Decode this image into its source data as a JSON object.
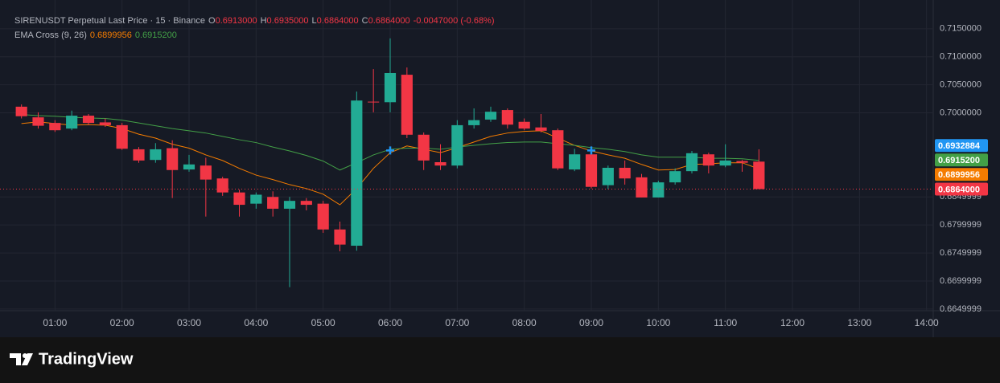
{
  "chart_data": {
    "type": "candlestick",
    "title": "SIRENUSDT Perpetual Last Price · 15 · Binance",
    "last_prefixes": [
      "O",
      "H",
      "L",
      "C"
    ],
    "last_labels": [
      "0.6913000",
      "0.6935000",
      "0.6864000",
      "0.6864000"
    ],
    "change_label": "-0.0047000 (-0.68%)",
    "indicator_title": "EMA Cross (9, 26)",
    "up_color": "#22ab94",
    "down_color": "#f23645",
    "x": [
      0.5,
      0.75,
      1,
      1.25,
      1.5,
      1.75,
      2,
      2.25,
      2.5,
      2.75,
      3,
      3.25,
      3.5,
      3.75,
      4,
      4.25,
      4.5,
      4.75,
      5,
      5.25,
      5.5,
      5.75,
      6,
      6.25,
      6.5,
      6.75,
      7,
      7.25,
      7.5,
      7.75,
      8,
      8.25,
      8.5,
      8.75,
      9,
      9.25,
      9.5,
      9.75,
      10,
      10.25,
      10.5,
      10.75,
      11,
      11.25,
      11.5
    ],
    "open": [
      0.7011,
      0.6992,
      0.6982,
      0.6972,
      0.6995,
      0.6983,
      0.6978,
      0.6935,
      0.6916,
      0.6937,
      0.6899,
      0.6906,
      0.6883,
      0.6858,
      0.6838,
      0.685,
      0.6829,
      0.6843,
      0.6838,
      0.6792,
      0.6763,
      0.702,
      0.7019,
      0.7068,
      0.6961,
      0.6912,
      0.6906,
      0.6978,
      0.6988,
      0.7005,
      0.6984,
      0.6974,
      0.6969,
      0.6899,
      0.6926,
      0.6871,
      0.6902,
      0.6885,
      0.6849,
      0.6876,
      0.6896,
      0.6926,
      0.6906,
      0.6914,
      0.6913
    ],
    "high": [
      0.7015,
      0.7001,
      0.6987,
      0.7004,
      0.6998,
      0.699,
      0.6982,
      0.6939,
      0.6946,
      0.6951,
      0.6925,
      0.692,
      0.6886,
      0.6863,
      0.6858,
      0.686,
      0.685,
      0.6848,
      0.6843,
      0.6806,
      0.7038,
      0.7078,
      0.7133,
      0.7081,
      0.6965,
      0.6944,
      0.6987,
      0.7008,
      0.7011,
      0.7008,
      0.699,
      0.6998,
      0.6972,
      0.6936,
      0.6936,
      0.6906,
      0.6915,
      0.6891,
      0.6879,
      0.6901,
      0.6932,
      0.6929,
      0.6944,
      0.6916,
      0.6935
    ],
    "low": [
      0.699,
      0.6972,
      0.6966,
      0.6969,
      0.6978,
      0.6975,
      0.6934,
      0.6911,
      0.6911,
      0.6848,
      0.6895,
      0.6815,
      0.6852,
      0.6815,
      0.6829,
      0.6815,
      0.6689,
      0.6826,
      0.6786,
      0.6753,
      0.6754,
      0.7001,
      0.7001,
      0.6955,
      0.6898,
      0.6898,
      0.6901,
      0.6972,
      0.6984,
      0.6972,
      0.6969,
      0.6965,
      0.6898,
      0.6896,
      0.6865,
      0.6864,
      0.6872,
      0.6849,
      0.6849,
      0.6872,
      0.6892,
      0.6892,
      0.6903,
      0.6895,
      0.6864
    ],
    "close": [
      0.6994,
      0.6977,
      0.6969,
      0.6995,
      0.6982,
      0.6978,
      0.6936,
      0.6915,
      0.6935,
      0.6898,
      0.6908,
      0.6881,
      0.6858,
      0.6836,
      0.6854,
      0.6829,
      0.6843,
      0.6836,
      0.6792,
      0.6765,
      0.7022,
      0.7019,
      0.7071,
      0.6961,
      0.6915,
      0.6906,
      0.6978,
      0.6987,
      0.7002,
      0.6979,
      0.6972,
      0.6968,
      0.6901,
      0.6926,
      0.6868,
      0.6902,
      0.6883,
      0.6849,
      0.6876,
      0.6896,
      0.6928,
      0.6906,
      0.6915,
      0.6911,
      0.6864
    ],
    "ema_lines": [
      {
        "color": "#f57c00",
        "value_label": "0.6899956",
        "values": [
          0.6981,
          0.6984,
          0.6981,
          0.6978,
          0.6979,
          0.6978,
          0.6972,
          0.6962,
          0.6955,
          0.6944,
          0.6937,
          0.6925,
          0.6915,
          0.6901,
          0.6889,
          0.6881,
          0.6872,
          0.6865,
          0.6855,
          0.6836,
          0.6865,
          0.6901,
          0.6929,
          0.6941,
          0.6935,
          0.6929,
          0.6938,
          0.6948,
          0.6958,
          0.6964,
          0.6967,
          0.6968,
          0.6955,
          0.6942,
          0.6932,
          0.6925,
          0.6919,
          0.6908,
          0.6898,
          0.6899,
          0.6908,
          0.6909,
          0.6911,
          0.6911,
          0.6899956
        ]
      },
      {
        "color": "#43a047",
        "value_label": "0.6915200",
        "values": [
          0.6997,
          0.6995,
          0.6994,
          0.6992,
          0.6991,
          0.699,
          0.6987,
          0.6982,
          0.6977,
          0.6972,
          0.6968,
          0.6964,
          0.6958,
          0.6952,
          0.6947,
          0.6939,
          0.6932,
          0.6924,
          0.6914,
          0.6898,
          0.6911,
          0.6925,
          0.6935,
          0.6937,
          0.6937,
          0.6935,
          0.6939,
          0.6942,
          0.6945,
          0.6947,
          0.6948,
          0.6948,
          0.6945,
          0.6942,
          0.6938,
          0.6935,
          0.6931,
          0.6925,
          0.6921,
          0.6921,
          0.6921,
          0.6919,
          0.6919,
          0.6918,
          0.69152
        ]
      }
    ],
    "marker_price": 0.6932884,
    "marker_x": [
      6,
      9
    ],
    "marker_color": "#2196f3",
    "xlim": [
      0.3,
      14.1
    ],
    "xticks": [
      {
        "value": 1,
        "label": "01:00"
      },
      {
        "value": 2,
        "label": "02:00"
      },
      {
        "value": 3,
        "label": "03:00"
      },
      {
        "value": 4,
        "label": "04:00"
      },
      {
        "value": 5,
        "label": "05:00"
      },
      {
        "value": 6,
        "label": "06:00"
      },
      {
        "value": 7,
        "label": "07:00"
      },
      {
        "value": 8,
        "label": "08:00"
      },
      {
        "value": 9,
        "label": "09:00"
      },
      {
        "value": 10,
        "label": "10:00"
      },
      {
        "value": 11,
        "label": "11:00"
      },
      {
        "value": 12,
        "label": "12:00"
      },
      {
        "value": 13,
        "label": "13:00"
      },
      {
        "value": 14,
        "label": "14:00"
      }
    ],
    "ylim": [
      0.6647,
      0.7187
    ],
    "yticks": [
      {
        "value": 0.715,
        "label": "0.7150000"
      },
      {
        "value": 0.71,
        "label": "0.7100000"
      },
      {
        "value": 0.705,
        "label": "0.7050000"
      },
      {
        "value": 0.7,
        "label": "0.7000000"
      },
      {
        "value": 0.6849999,
        "label": "0.6849999"
      },
      {
        "value": 0.6799999,
        "label": "0.6799999"
      },
      {
        "value": 0.6749999,
        "label": "0.6749999"
      },
      {
        "value": 0.6699999,
        "label": "0.6699999"
      },
      {
        "value": 0.6649999,
        "label": "0.6649999"
      }
    ],
    "grid": true,
    "brand": "TradingView"
  }
}
